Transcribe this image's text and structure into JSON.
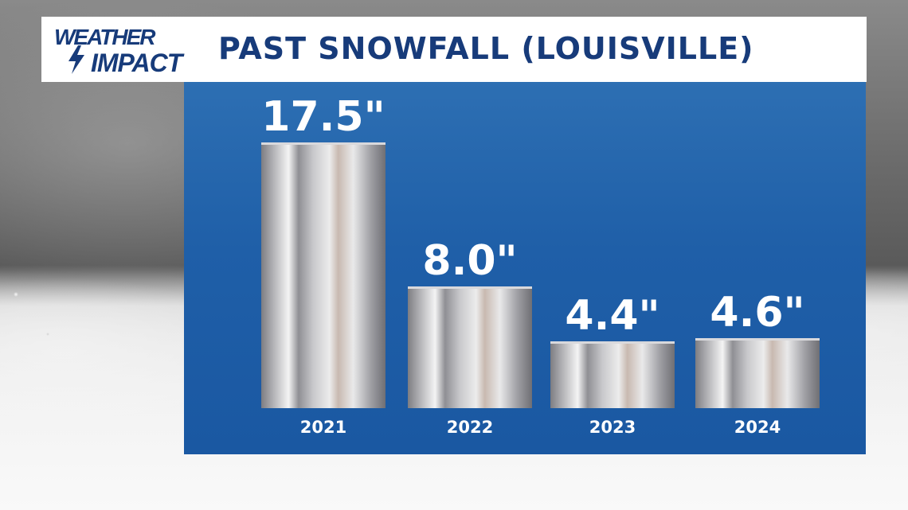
{
  "brand": {
    "logo_line1": "WEATHER",
    "logo_line2": "IMPACT",
    "logo_color": "#173b7a"
  },
  "header": {
    "title": "PAST SNOWFALL (LOUISVILLE)"
  },
  "colors": {
    "panel": "#1f5fa8",
    "bar_base": "#b8b8bc",
    "text": "#ffffff"
  },
  "chart_data": {
    "type": "bar",
    "title": "PAST SNOWFALL (LOUISVILLE)",
    "categories": [
      "2021",
      "2022",
      "2023",
      "2024"
    ],
    "values": [
      17.5,
      8.0,
      4.4,
      4.6
    ],
    "value_labels": [
      "17.5\"",
      "8.0\"",
      "4.4\"",
      "4.6\""
    ],
    "ylim": [
      0,
      17.5
    ],
    "grid": false,
    "legend": "none"
  }
}
